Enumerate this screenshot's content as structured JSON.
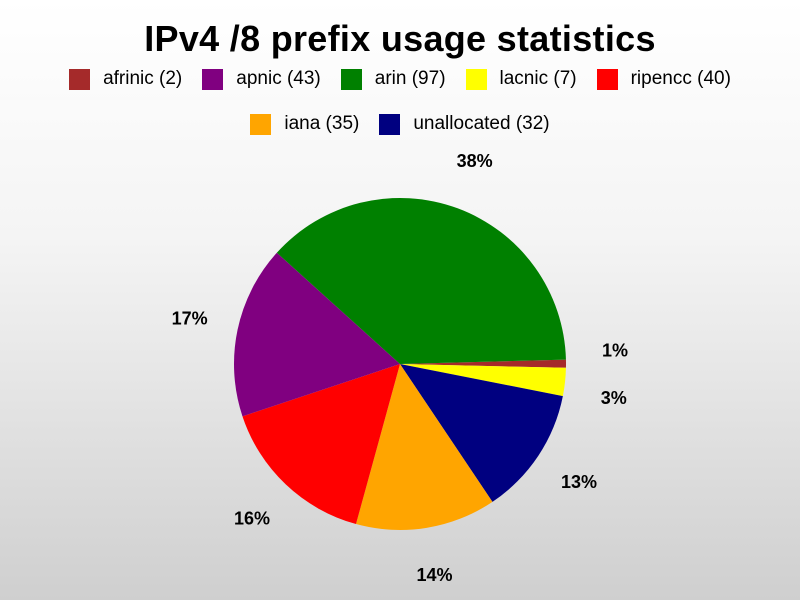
{
  "chart_data": {
    "type": "pie",
    "title": "IPv4 /8 prefix usage statistics",
    "legend_position": "top",
    "slices": [
      {
        "label": "afrinic (2)",
        "value": 2,
        "percent_label": "1%",
        "color": "#a52a2a"
      },
      {
        "label": "lacnic (7)",
        "value": 7,
        "percent_label": "3%",
        "color": "#ffff00"
      },
      {
        "label": "unallocated (32)",
        "value": 32,
        "percent_label": "13%",
        "color": "#000080"
      },
      {
        "label": "iana (35)",
        "value": 35,
        "percent_label": "14%",
        "color": "#ffa500"
      },
      {
        "label": "ripencc (40)",
        "value": 40,
        "percent_label": "16%",
        "color": "#ff0000"
      },
      {
        "label": "apnic (43)",
        "value": 43,
        "percent_label": "17%",
        "color": "#800080"
      },
      {
        "label": "arin (97)",
        "value": 97,
        "percent_label": "38%",
        "color": "#008000"
      }
    ],
    "legend": [
      {
        "label": "afrinic (2)",
        "color": "#a52a2a"
      },
      {
        "label": "apnic (43)",
        "color": "#800080"
      },
      {
        "label": "arin (97)",
        "color": "#008000"
      },
      {
        "label": "lacnic (7)",
        "color": "#ffff00"
      },
      {
        "label": "ripencc (40)",
        "color": "#ff0000"
      },
      {
        "label": "iana (35)",
        "color": "#ffa500"
      },
      {
        "label": "unallocated (32)",
        "color": "#000080"
      }
    ]
  }
}
